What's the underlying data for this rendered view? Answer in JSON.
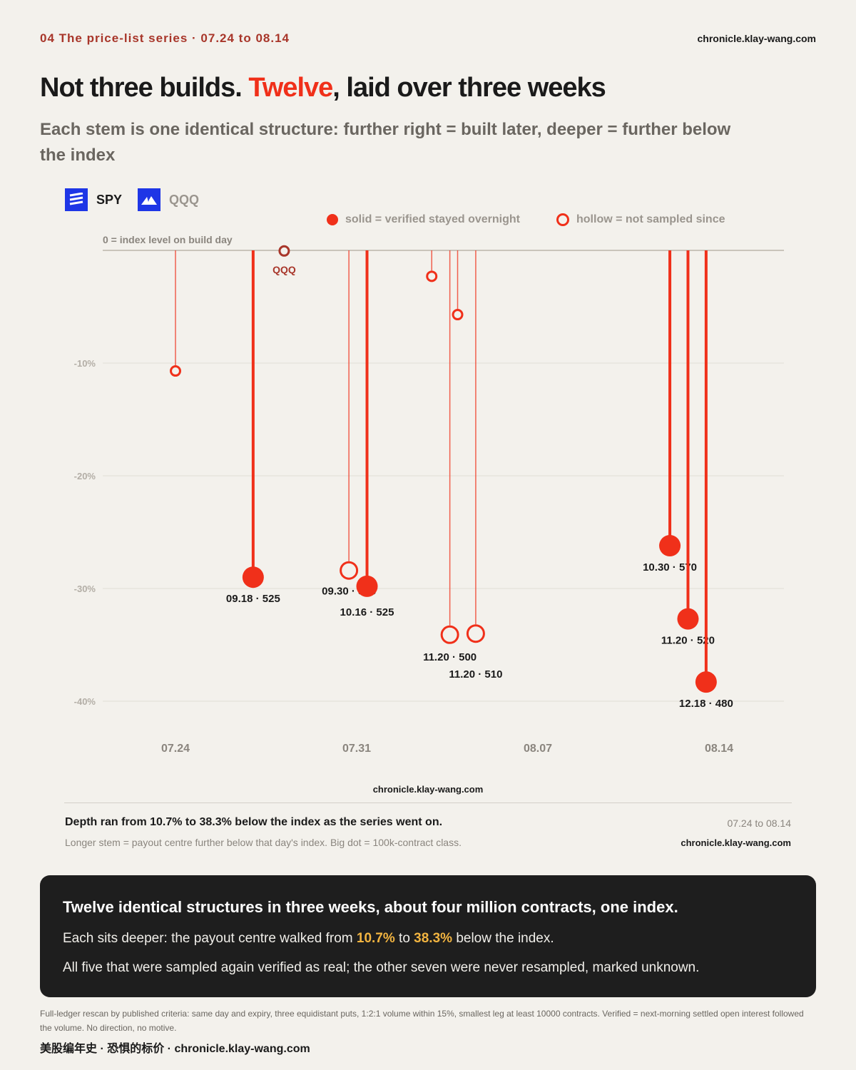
{
  "header": {
    "series_label": "04  The price-list series · 07.24 to 08.14",
    "site": "chronicle.klay-wang.com"
  },
  "title": {
    "part1": "Not three builds. ",
    "highlight": "Twelve",
    "part2": ", laid over three weeks"
  },
  "subtitle": "Each stem is one identical structure: further right = built later, deeper = further below the index",
  "tickers": [
    {
      "label": "SPY",
      "icon": "spy-lines-icon"
    },
    {
      "label": "QQQ",
      "icon": "qqq-mountain-icon"
    }
  ],
  "legend": {
    "solid": "solid = verified stayed overnight",
    "hollow": "hollow = not sampled since"
  },
  "colors": {
    "accent": "#f0301a",
    "qqq": "#a8362a",
    "brand_blue": "#1e36e6",
    "highlight_num": "#f2b440"
  },
  "chart_data": {
    "type": "scatter",
    "style": "stem",
    "baseline_label": "0 = index level on build day",
    "x_ticks": [
      "07.24",
      "07.31",
      "08.07",
      "08.14"
    ],
    "y_ticks": [
      "-10%",
      "-20%",
      "-30%",
      "-40%"
    ],
    "ylim": [
      -42,
      0
    ],
    "grid": true,
    "points": [
      {
        "x": "07.24",
        "offset_days": 0,
        "y": -10.7,
        "verified": false,
        "label": "",
        "series": "SPY"
      },
      {
        "x": "07.27",
        "offset_days": 3,
        "y": -29.0,
        "verified": true,
        "label": "09.18 · 525",
        "series": "SPY"
      },
      {
        "x": "07.28",
        "offset_days": 4.2,
        "y": -0.05,
        "verified": false,
        "label": "QQQ",
        "series": "QQQ"
      },
      {
        "x": "07.30",
        "offset_days": 6.7,
        "y": -28.4,
        "verified": false,
        "label": "09.30 · 535",
        "series": "SPY"
      },
      {
        "x": "07.31",
        "offset_days": 7.4,
        "y": -29.8,
        "verified": true,
        "label": "10.16 · 525",
        "series": "SPY"
      },
      {
        "x": "08.03",
        "offset_days": 9.9,
        "y": -2.3,
        "verified": false,
        "label": "",
        "series": "SPY"
      },
      {
        "x": "08.04",
        "offset_days": 10.6,
        "y": -34.1,
        "verified": false,
        "label": "11.20 · 500",
        "series": "SPY"
      },
      {
        "x": "08.04",
        "offset_days": 10.9,
        "y": -5.7,
        "verified": false,
        "label": "",
        "series": "SPY"
      },
      {
        "x": "08.05",
        "offset_days": 11.6,
        "y": -34.0,
        "verified": false,
        "label": "11.20 · 510",
        "series": "SPY"
      },
      {
        "x": "08.12",
        "offset_days": 19.1,
        "y": -26.2,
        "verified": true,
        "label": "10.30 · 570",
        "series": "SPY"
      },
      {
        "x": "08.13",
        "offset_days": 19.8,
        "y": -32.7,
        "verified": true,
        "label": "11.20 · 520",
        "series": "SPY"
      },
      {
        "x": "08.13",
        "offset_days": 20.5,
        "y": -38.3,
        "verified": true,
        "label": "12.18 · 480",
        "series": "SPY"
      }
    ]
  },
  "footer_site_center": "chronicle.klay-wang.com",
  "note": {
    "title": "Depth ran from 10.7% to 38.3% below the index as the series went on.",
    "range": "07.24 to 08.14",
    "text": "Longer stem = payout centre further below that day's index. Big dot = 100k-contract class.",
    "site": "chronicle.klay-wang.com"
  },
  "summary": {
    "headline": "Twelve identical structures in three weeks, about four million contracts, one index.",
    "line1_a": "Each sits deeper: the payout centre walked from ",
    "line1_n1": "10.7%",
    "line1_b": " to ",
    "line1_n2": "38.3%",
    "line1_c": " below the index.",
    "line2": "All five that were sampled again verified as real; the other seven were never resampled, marked unknown."
  },
  "fine_print": "Full-ledger rescan by published criteria: same day and expiry, three equidistant puts, 1:2:1 volume within 15%, smallest leg at least 10000 contracts. Verified = next-morning settled open interest followed the volume. No direction, no motive.",
  "footer": "美股编年史 · 恐惧的标价 · chronicle.klay-wang.com"
}
